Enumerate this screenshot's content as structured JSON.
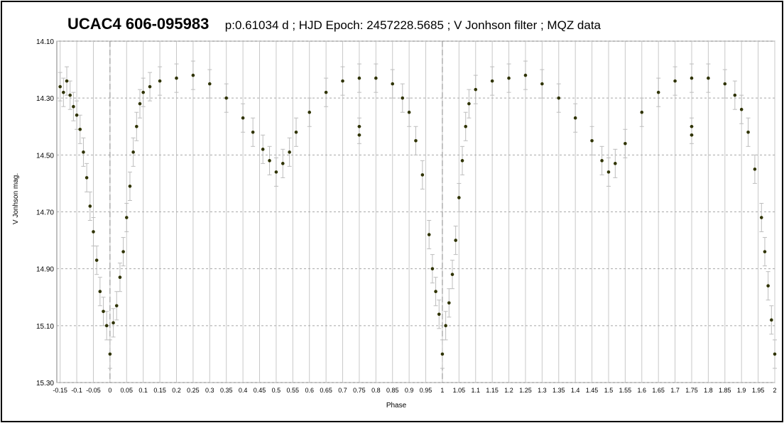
{
  "chart_data": {
    "type": "scatter",
    "title": "UCAC4 606-095983",
    "subtitle": "p:0.61034 d ;   HJD Epoch: 2457228.5685 ; V Jonhson filter ;   MQZ data",
    "xlabel": "Phase",
    "ylabel": "V Jonhson mag.",
    "xlim": [
      -0.16,
      2.0
    ],
    "ylim": [
      14.1,
      15.3
    ],
    "y_inverted": true,
    "grid": true,
    "x_ticks": [
      "-0.15",
      "-0.1",
      "-0.05",
      "0",
      "0.05",
      "0.1",
      "0.15",
      "0.2",
      "0.25",
      "0.3",
      "0.35",
      "0.4",
      "0.45",
      "0.5",
      "0.55",
      "0.6",
      "0.65",
      "0.7",
      "0.75",
      "0.8",
      "0.85",
      "0.9",
      "0.95",
      "1",
      "1.05",
      "1.1",
      "1.15",
      "1.2",
      "1.25",
      "1.3",
      "1.35",
      "1.4",
      "1.45",
      "1.5",
      "1.55",
      "1.6",
      "1.65",
      "1.7",
      "1.75",
      "1.8",
      "1.85",
      "1.9",
      "1.95",
      "2"
    ],
    "y_ticks": [
      "14.10",
      "14.30",
      "14.50",
      "14.70",
      "14.90",
      "15.10",
      "15.30"
    ],
    "vertical_dashed_lines_at_x": [
      0,
      1
    ],
    "error_bar_color": "#bdbdbd",
    "point_color": "#2f3300",
    "series": [
      {
        "error_bar": 0.05,
        "points": [
          [
            -0.15,
            14.26
          ],
          [
            -0.14,
            14.28
          ],
          [
            -0.13,
            14.24
          ],
          [
            -0.12,
            14.29
          ],
          [
            -0.11,
            14.33
          ],
          [
            -0.1,
            14.36
          ],
          [
            -0.09,
            14.41
          ],
          [
            -0.08,
            14.49
          ],
          [
            -0.07,
            14.58
          ],
          [
            -0.06,
            14.68
          ],
          [
            -0.05,
            14.77
          ],
          [
            -0.04,
            14.87
          ],
          [
            -0.03,
            14.98
          ],
          [
            -0.02,
            15.05
          ],
          [
            -0.01,
            15.1
          ],
          [
            0.0,
            15.2
          ],
          [
            0.01,
            15.09
          ],
          [
            0.02,
            15.03
          ],
          [
            0.03,
            14.93
          ],
          [
            0.04,
            14.84
          ],
          [
            0.05,
            14.72
          ],
          [
            0.06,
            14.61
          ],
          [
            0.07,
            14.49
          ],
          [
            0.08,
            14.4
          ],
          [
            0.09,
            14.32
          ],
          [
            0.1,
            14.28
          ],
          [
            0.12,
            14.26
          ],
          [
            0.15,
            14.24
          ],
          [
            0.2,
            14.23
          ],
          [
            0.25,
            14.22
          ],
          [
            0.3,
            14.25
          ],
          [
            0.35,
            14.3
          ],
          [
            0.4,
            14.37
          ],
          [
            0.43,
            14.42
          ],
          [
            0.46,
            14.48
          ],
          [
            0.48,
            14.52
          ],
          [
            0.5,
            14.56
          ],
          [
            0.52,
            14.53
          ],
          [
            0.54,
            14.49
          ],
          [
            0.56,
            14.42
          ],
          [
            0.6,
            14.35
          ],
          [
            0.65,
            14.28
          ],
          [
            0.7,
            14.24
          ],
          [
            0.75,
            14.23
          ],
          [
            0.8,
            14.23
          ],
          [
            0.85,
            14.25
          ],
          [
            0.88,
            14.3
          ],
          [
            0.9,
            14.35
          ],
          [
            0.92,
            14.45
          ],
          [
            0.94,
            14.57
          ],
          [
            0.96,
            14.78
          ],
          [
            0.97,
            14.9
          ],
          [
            0.98,
            14.98
          ],
          [
            0.99,
            15.06
          ],
          [
            1.0,
            15.2
          ],
          [
            1.01,
            15.1
          ],
          [
            1.02,
            15.02
          ],
          [
            1.03,
            14.92
          ],
          [
            1.04,
            14.8
          ],
          [
            1.05,
            14.65
          ],
          [
            1.06,
            14.52
          ],
          [
            1.07,
            14.4
          ],
          [
            1.08,
            14.32
          ],
          [
            1.1,
            14.27
          ],
          [
            1.15,
            14.24
          ],
          [
            1.2,
            14.23
          ],
          [
            1.25,
            14.22
          ],
          [
            1.3,
            14.25
          ],
          [
            1.35,
            14.3
          ],
          [
            1.4,
            14.37
          ],
          [
            1.45,
            14.45
          ],
          [
            1.48,
            14.52
          ],
          [
            1.5,
            14.56
          ],
          [
            1.52,
            14.53
          ],
          [
            1.55,
            14.46
          ],
          [
            1.6,
            14.35
          ],
          [
            1.65,
            14.28
          ],
          [
            1.7,
            14.24
          ],
          [
            1.75,
            14.23
          ],
          [
            1.8,
            14.23
          ],
          [
            1.85,
            14.25
          ],
          [
            1.88,
            14.29
          ],
          [
            1.9,
            14.34
          ],
          [
            1.92,
            14.42
          ],
          [
            1.94,
            14.55
          ],
          [
            1.96,
            14.72
          ],
          [
            1.97,
            14.84
          ],
          [
            1.98,
            14.96
          ],
          [
            1.99,
            15.08
          ],
          [
            2.0,
            15.2
          ]
        ]
      },
      {
        "error_bar": 0.03,
        "points": [
          [
            0.75,
            14.4
          ],
          [
            0.75,
            14.43
          ],
          [
            1.75,
            14.4
          ],
          [
            1.75,
            14.43
          ]
        ]
      }
    ]
  }
}
